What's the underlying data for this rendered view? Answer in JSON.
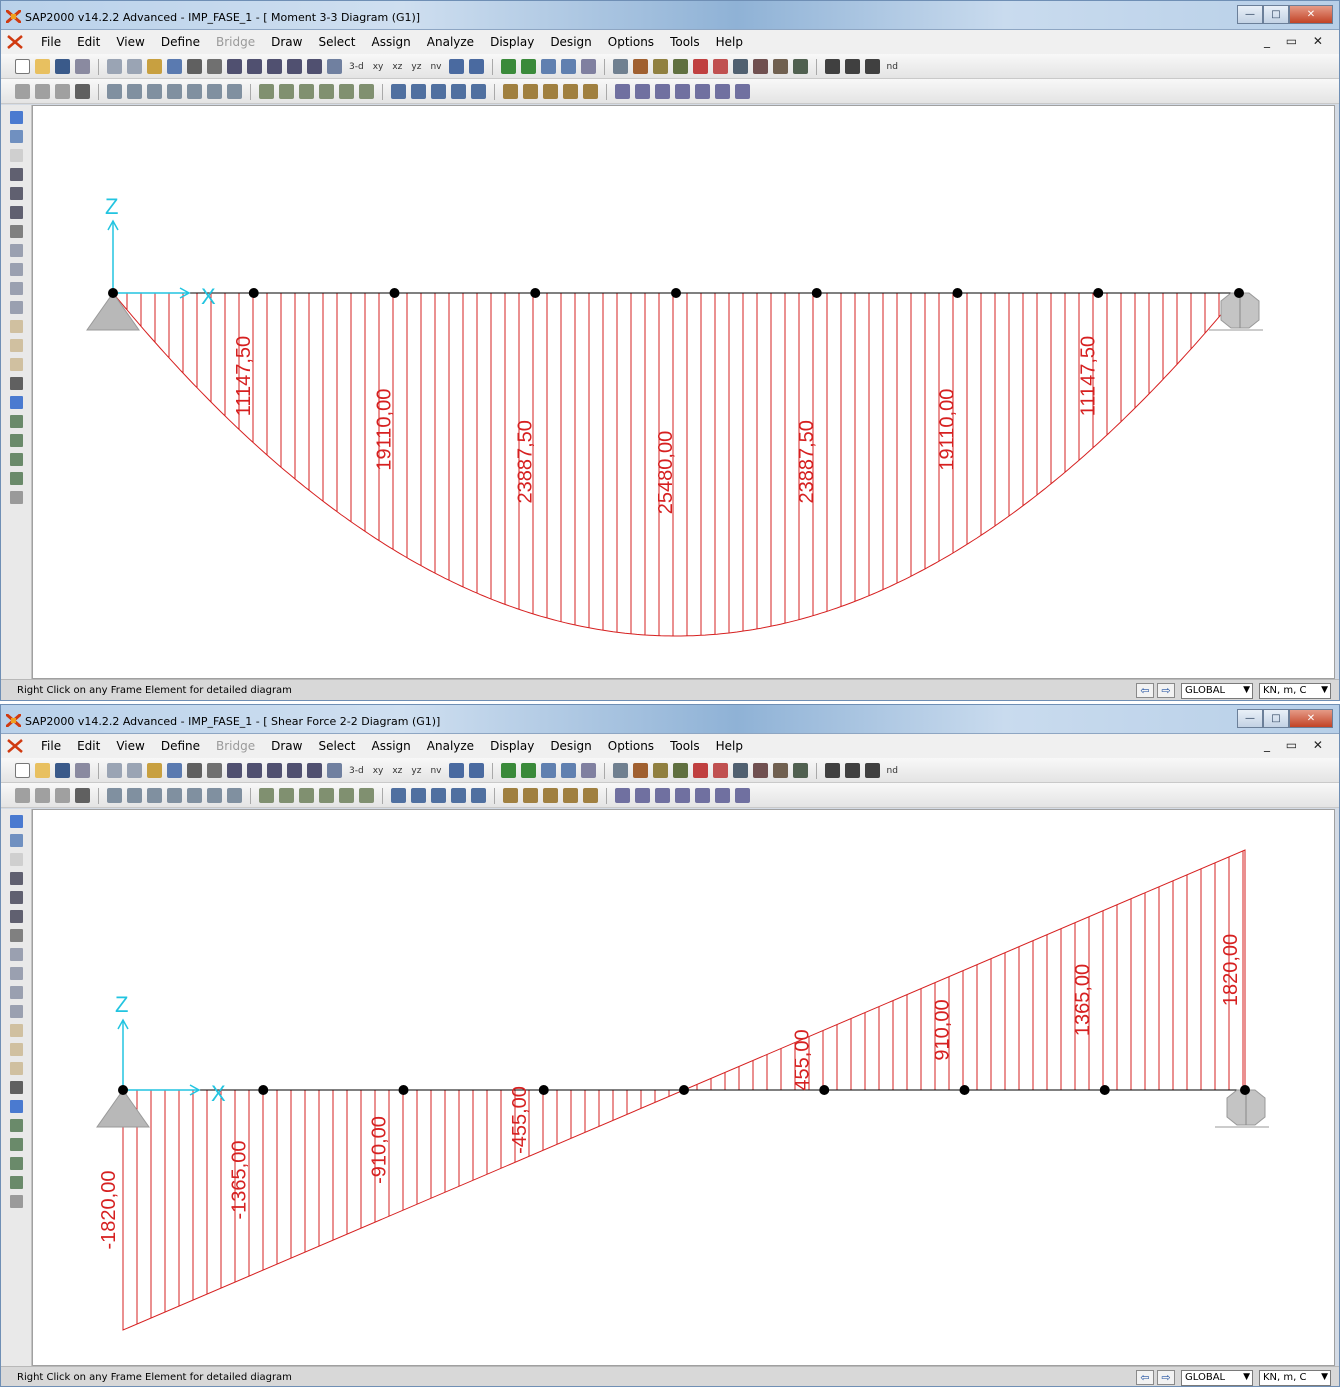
{
  "app_menu": [
    "File",
    "Edit",
    "View",
    "Define",
    "Bridge",
    "Draw",
    "Select",
    "Assign",
    "Analyze",
    "Display",
    "Design",
    "Options",
    "Tools",
    "Help"
  ],
  "toolbar_texts": [
    "3-d",
    "xy",
    "xz",
    "yz",
    "nv",
    "nd"
  ],
  "status": {
    "text": "Right Click on any Frame Element for detailed diagram",
    "coord_system": "GLOBAL",
    "units": "KN, m, C"
  },
  "windows": [
    {
      "title": "SAP2000 v14.2.2 Advanced  - IMP_FASE_1 - [  Moment 3-3 Diagram   (G1)]",
      "axis_labels": {
        "z": "Z",
        "x": "X"
      },
      "diagram_labels": [
        "11147,50",
        "19110,00",
        "23887,50",
        "25480,00",
        "23887,50",
        "19110,00",
        "11147,50"
      ]
    },
    {
      "title": "SAP2000 v14.2.2 Advanced  - IMP_FASE_1 - [  Shear Force 2-2 Diagram   (G1)]",
      "axis_labels": {
        "z": "Z",
        "x": "X"
      },
      "diagram_labels": [
        "-1820,00",
        "-1365,00",
        "-910,00",
        "-455,00",
        "455,00",
        "910,00",
        "1365,00",
        "1820,00"
      ]
    }
  ],
  "colors": {
    "diagram": "#d62020",
    "axes": "#22c4e0",
    "support": "#b8b8b8"
  }
}
